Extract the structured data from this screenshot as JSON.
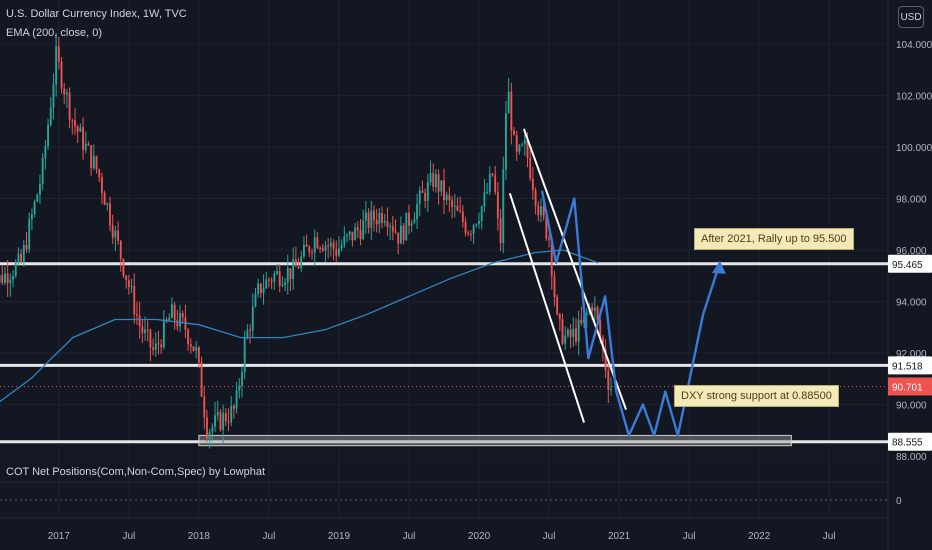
{
  "header": {
    "title": "U.S. Dollar Currency Index, 1W, TVC",
    "indicator": "EMA (200, close, 0)",
    "currency": "USD"
  },
  "cot_label": "COT Net Positions(Com,Non-Com,Spec) by Lowphat",
  "cot_axis_label": "0",
  "annotations": {
    "rally": "After 2021, Rally up to 95.500",
    "support": "DXY strong support at 0.88500"
  },
  "colors": {
    "background": "#131722",
    "up": "#26a69a",
    "down": "#ef5350",
    "ema": "#2e86c1",
    "projection": "#3a7bd5",
    "level_line": "#e6e6e6",
    "price_label": "#ef5350"
  },
  "chart_data": {
    "type": "candlestick",
    "title": "U.S. Dollar Currency Index, 1W, TVC",
    "ylim": [
      87.3,
      105.0
    ],
    "x_ticks": [
      "2017",
      "Jul",
      "2018",
      "Jul",
      "2019",
      "Jul",
      "2020",
      "Jul",
      "2021",
      "Jul",
      "2022",
      "Jul"
    ],
    "y_ticks": [
      "104.000",
      "102.000",
      "100.000",
      "98.000",
      "96.000",
      "94.000",
      "92.000",
      "90.000",
      "88.000"
    ],
    "y_tick_values": [
      104,
      102,
      100,
      98,
      96,
      94,
      92,
      90,
      88
    ],
    "levels": [
      {
        "label": "95.465",
        "value": 95.465
      },
      {
        "label": "91.518",
        "value": 91.518
      },
      {
        "label": "88.555",
        "value": 88.555
      }
    ],
    "last_price": {
      "label": "90.701",
      "value": 90.701
    },
    "ema_period": 200,
    "anchors": [
      [
        2016.5,
        94.5
      ],
      [
        2016.75,
        95.5
      ],
      [
        2016.9,
        99.0
      ],
      [
        2017.0,
        103.5
      ],
      [
        2017.12,
        101.0
      ],
      [
        2017.3,
        99.0
      ],
      [
        2017.45,
        96.0
      ],
      [
        2017.6,
        93.0
      ],
      [
        2017.7,
        92.0
      ],
      [
        2017.82,
        93.5
      ],
      [
        2017.92,
        93.0
      ],
      [
        2018.0,
        92.0
      ],
      [
        2018.08,
        89.0
      ],
      [
        2018.2,
        89.5
      ],
      [
        2018.28,
        89.8
      ],
      [
        2018.35,
        92.5
      ],
      [
        2018.45,
        94.5
      ],
      [
        2018.55,
        95.0
      ],
      [
        2018.7,
        95.2
      ],
      [
        2018.85,
        96.5
      ],
      [
        2019.0,
        96.0
      ],
      [
        2019.2,
        97.0
      ],
      [
        2019.35,
        97.5
      ],
      [
        2019.45,
        96.5
      ],
      [
        2019.55,
        97.5
      ],
      [
        2019.7,
        98.8
      ],
      [
        2019.8,
        97.8
      ],
      [
        2019.95,
        96.8
      ],
      [
        2020.05,
        97.8
      ],
      [
        2020.12,
        99.0
      ],
      [
        2020.17,
        96.0
      ],
      [
        2020.22,
        102.5
      ],
      [
        2020.28,
        99.5
      ],
      [
        2020.35,
        100.0
      ],
      [
        2020.45,
        97.5
      ],
      [
        2020.52,
        96.5
      ],
      [
        2020.58,
        93.0
      ],
      [
        2020.65,
        92.5
      ],
      [
        2020.75,
        93.0
      ],
      [
        2020.83,
        94.0
      ],
      [
        2020.9,
        92.2
      ],
      [
        2020.95,
        90.7
      ]
    ],
    "ema_points": [
      [
        2016.5,
        89.8
      ],
      [
        2016.8,
        91.0
      ],
      [
        2017.1,
        92.6
      ],
      [
        2017.4,
        93.3
      ],
      [
        2017.7,
        93.3
      ],
      [
        2018.0,
        93.1
      ],
      [
        2018.3,
        92.6
      ],
      [
        2018.6,
        92.6
      ],
      [
        2018.9,
        92.9
      ],
      [
        2019.2,
        93.5
      ],
      [
        2019.5,
        94.2
      ],
      [
        2019.8,
        94.9
      ],
      [
        2020.1,
        95.5
      ],
      [
        2020.4,
        95.9
      ],
      [
        2020.6,
        96.0
      ],
      [
        2020.85,
        95.5
      ]
    ],
    "channel": [
      {
        "from": [
          2020.32,
          100.7
        ],
        "to": [
          2021.05,
          89.8
        ]
      },
      {
        "from": [
          2020.22,
          98.2
        ],
        "to": [
          2020.75,
          89.3
        ]
      }
    ],
    "projection_path": [
      [
        2020.45,
        98.3
      ],
      [
        2020.55,
        95.5
      ],
      [
        2020.68,
        98.0
      ],
      [
        2020.78,
        91.8
      ],
      [
        2020.9,
        94.2
      ],
      [
        2020.98,
        90.5
      ],
      [
        2021.07,
        88.8
      ],
      [
        2021.17,
        90.0
      ],
      [
        2021.25,
        88.8
      ],
      [
        2021.33,
        90.5
      ],
      [
        2021.42,
        88.8
      ],
      [
        2021.6,
        93.5
      ],
      [
        2021.72,
        95.5
      ]
    ],
    "support_zone": [
      88.4,
      88.8
    ],
    "support_zone_x": [
      2018.0,
      2022.23
    ]
  }
}
